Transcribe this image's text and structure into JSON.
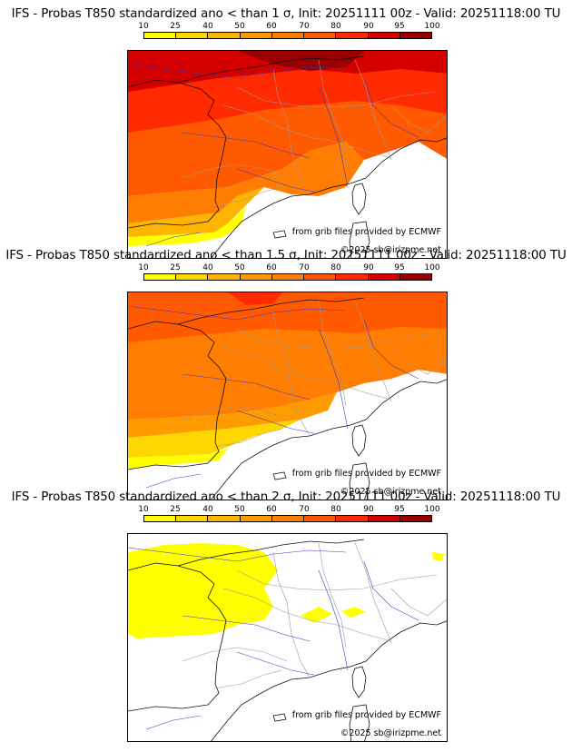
{
  "colorbar": {
    "ticks": [
      "10",
      "25",
      "40",
      "50",
      "60",
      "70",
      "80",
      "90",
      "95",
      "100"
    ],
    "colors": [
      "#ffff00",
      "#ffd700",
      "#ffb400",
      "#ff9a00",
      "#ff7d00",
      "#ff5a00",
      "#ff2a00",
      "#d40000",
      "#9a0000"
    ]
  },
  "credits": {
    "source": "from grib files provided by ECMWF",
    "copyright": "©2025 sb@irizpme.net"
  },
  "panels": [
    {
      "title": "IFS - Probas T850  standardized ano < than 1 σ, Init: 20251111 00z - Valid: 20251118:00 TU",
      "level": "high"
    },
    {
      "title": "IFS - Probas T850  standardized ano < than 1.5 σ, Init: 20251111 00z - Valid: 20251118:00 TU",
      "level": "medium"
    },
    {
      "title": "IFS - Probas T850  standardized ano < than 2 σ, Init: 20251111 00z - Valid: 20251118:00 TU",
      "level": "low"
    }
  ]
}
